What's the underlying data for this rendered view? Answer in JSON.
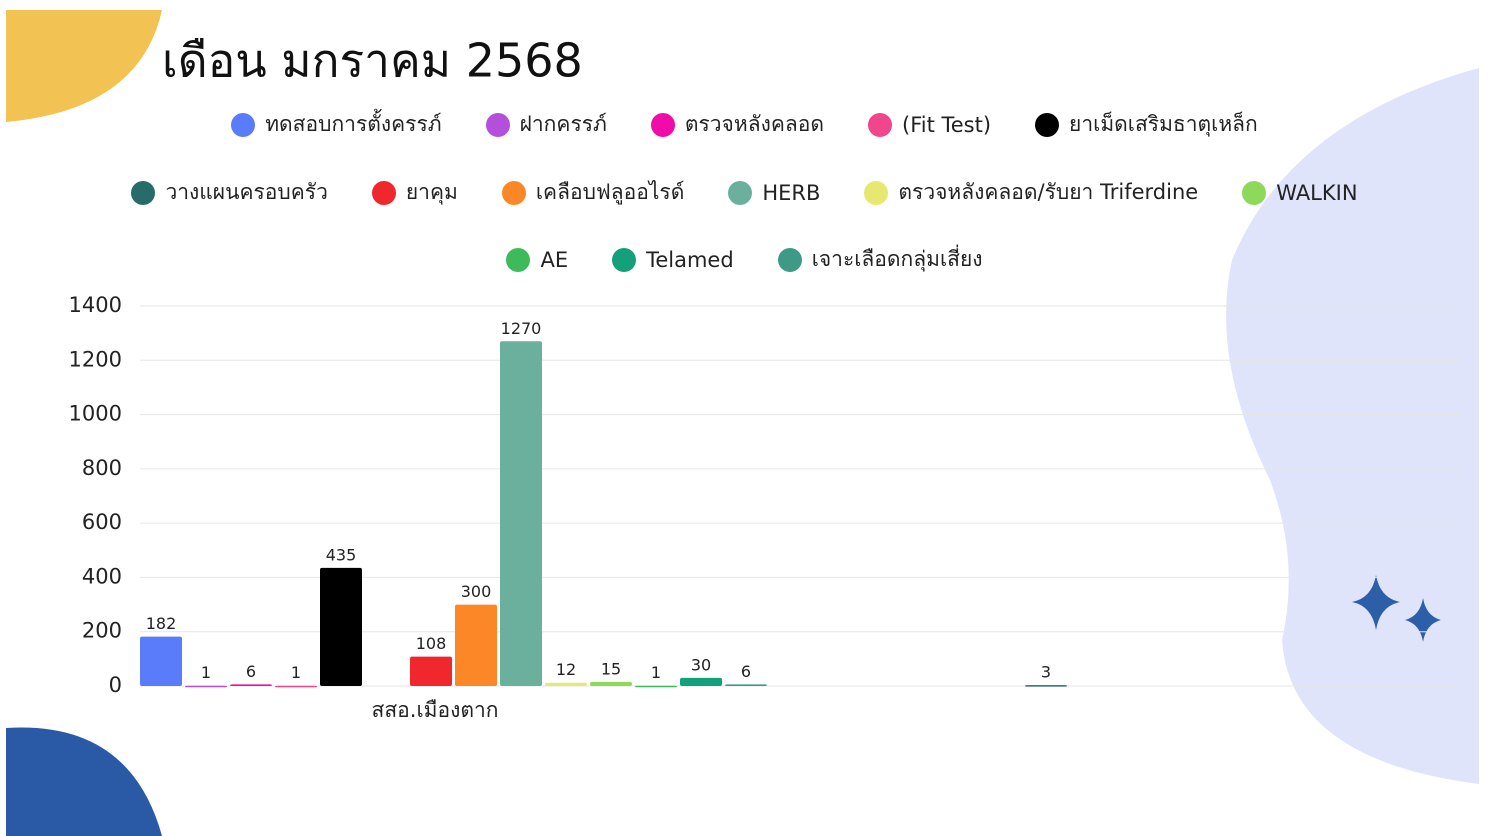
{
  "chart_data": {
    "type": "bar",
    "title": "เดือน มกราคม 2568",
    "categories": [
      "สสอ.เมืองตาก",
      null
    ],
    "series": [
      {
        "name": "ทดสอบการตั้งครรภ์",
        "color": "#5b7cfa",
        "values": [
          182,
          null
        ]
      },
      {
        "name": "ฝากครรภ์",
        "color": "#b44fdc",
        "values": [
          1,
          null
        ]
      },
      {
        "name": "ตรวจหลังคลอด",
        "color": "#f00ca8",
        "values": [
          6,
          null
        ]
      },
      {
        "name": "(Fit Test)",
        "color": "#f0468c",
        "values": [
          1,
          null
        ]
      },
      {
        "name": "ยาเม็ดเสริมธาตุเหล็ก",
        "color": "#000000",
        "values": [
          435,
          null
        ]
      },
      {
        "name": "วางแผนครอบครัว",
        "color": "#276b6b",
        "values": [
          null,
          3
        ]
      },
      {
        "name": "ยาคุม",
        "color": "#f0272d",
        "values": [
          108,
          null
        ]
      },
      {
        "name": "เคลือบฟลูออไรด์",
        "color": "#fb8727",
        "values": [
          300,
          null
        ]
      },
      {
        "name": "HERB",
        "color": "#6ab09c",
        "values": [
          1270,
          null
        ]
      },
      {
        "name": "ตรวจหลังคลอด/รับยา Triferdine",
        "color": "#e7e870",
        "values": [
          12,
          null
        ]
      },
      {
        "name": "WALKIN",
        "color": "#8fd95a",
        "values": [
          15,
          null
        ]
      },
      {
        "name": "AE",
        "color": "#3dbb5a",
        "values": [
          1,
          null
        ]
      },
      {
        "name": "Telamed",
        "color": "#14a07a",
        "values": [
          30,
          null
        ]
      },
      {
        "name": "เจาะเลือดกลุ่มเสี่ยง",
        "color": "#3e9a86",
        "values": [
          6,
          null
        ]
      }
    ],
    "ylim": [
      0,
      1400
    ],
    "yticks": [
      0,
      200,
      400,
      600,
      800,
      1000,
      1200,
      1400
    ],
    "grid": true
  }
}
